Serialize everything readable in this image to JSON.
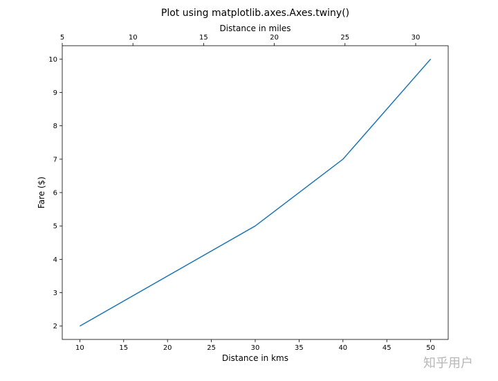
{
  "chart_data": {
    "type": "line",
    "title": "Plot using matplotlib.axes.Axes.twiny()",
    "xlabel": "Distance in kms",
    "ylabel": "Fare ($)",
    "top_xlabel": "Distance in miles",
    "x": [
      10,
      30,
      40,
      50
    ],
    "series": [
      {
        "values": [
          2,
          5,
          7,
          10
        ],
        "color": "#1f77b4"
      }
    ],
    "xlim": [
      8,
      52
    ],
    "ylim": [
      1.6,
      10.4
    ],
    "top_xlim": [
      5,
      32.3
    ],
    "xticks": [
      10,
      15,
      20,
      25,
      30,
      35,
      40,
      45,
      50
    ],
    "yticks": [
      2,
      3,
      4,
      5,
      6,
      7,
      8,
      9,
      10
    ],
    "top_xticks": [
      5,
      10,
      15,
      20,
      25,
      30
    ],
    "grid": false
  },
  "watermark": "知乎用户"
}
